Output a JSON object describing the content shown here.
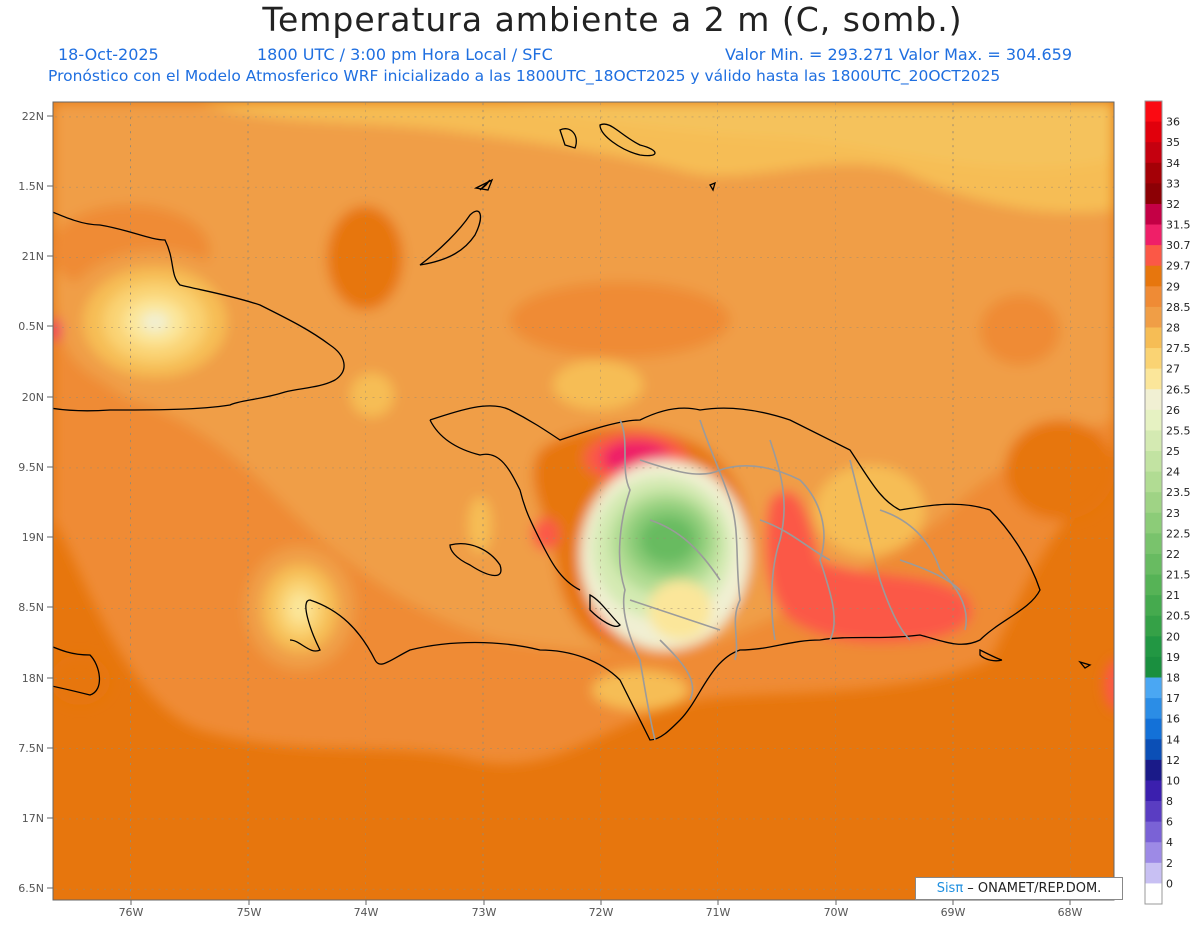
{
  "header": {
    "title": "Temperatura ambiente a 2 m (C, somb.)",
    "date": "18-Oct-2025",
    "time_info": "1800 UTC / 3:00 pm Hora Local / SFC",
    "value_range": "Valor Min. = 293.271   Valor Max. = 304.659",
    "forecast_info": "Pronóstico con el Modelo Atmosferico WRF inicializado a las 1800UTC_18OCT2025 y válido hasta las  1800UTC_20OCT2025"
  },
  "axes": {
    "lat_labels": [
      "22N",
      "1.5N",
      "21N",
      "0.5N",
      "20N",
      "9.5N",
      "19N",
      "8.5N",
      "18N",
      "7.5N",
      "17N",
      "6.5N"
    ],
    "lon_labels": [
      "76W",
      "75W",
      "74W",
      "73W",
      "72W",
      "71W",
      "70W",
      "69W",
      "68W"
    ]
  },
  "legend": {
    "labels": [
      "36",
      "35",
      "34",
      "33",
      "32",
      "31.5",
      "30.7",
      "29.7",
      "29",
      "28.5",
      "28",
      "27.5",
      "27",
      "26.5",
      "26",
      "25.5",
      "25",
      "24",
      "23.5",
      "23",
      "22.5",
      "22",
      "21.5",
      "21",
      "20.5",
      "20",
      "19",
      "18",
      "17",
      "16",
      "14",
      "12",
      "10",
      "8",
      "6",
      "4",
      "2",
      "0"
    ],
    "colors": [
      "#fb0a12",
      "#e1000c",
      "#c5000f",
      "#a40006",
      "#8c0005",
      "#c40045",
      "#ef1f68",
      "#fb5846",
      "#e7760d",
      "#ef8b35",
      "#f09e46",
      "#f6bd55",
      "#fad373",
      "#fbe69a",
      "#f1f0d3",
      "#e6f2c2",
      "#d4eab2",
      "#c2e3a2",
      "#b1dc93",
      "#9fd385",
      "#8ccc78",
      "#79c36c",
      "#68bb61",
      "#56b356",
      "#45aa4e",
      "#35a147",
      "#229743",
      "#1a8f3f",
      "#4aa7f3",
      "#2b8de6",
      "#1371d8",
      "#0b4fb6",
      "#1a1a88",
      "#3b1fae",
      "#5a3dc2",
      "#7a62d6",
      "#9d8ae6",
      "#c8c0f3",
      "#ffffff"
    ]
  },
  "credit": {
    "brand": "Sisπ",
    "text": " – ONAMET/REP.DOM."
  }
}
